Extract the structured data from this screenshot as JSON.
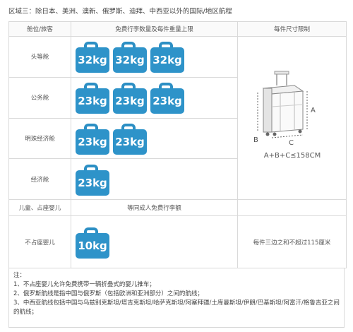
{
  "title": "区域三：除日本、美洲、澳新、俄罗斯、迪拜、中西亚以外的国际/地区航程",
  "headers": {
    "cabin": "舱位/旅客",
    "allowance": "免费行李数量及每件重量上限",
    "size": "每件尺寸限制"
  },
  "rows": [
    {
      "label": "头等舱",
      "bags": [
        "32kg",
        "32kg",
        "32kg"
      ]
    },
    {
      "label": "公务舱",
      "bags": [
        "23kg",
        "23kg",
        "23kg"
      ]
    },
    {
      "label": "明珠经济舱",
      "bags": [
        "23kg",
        "23kg"
      ]
    },
    {
      "label": "经济舱",
      "bags": [
        "23kg"
      ]
    },
    {
      "label": "儿童、占座婴儿",
      "text": "等同成人免费行李额"
    },
    {
      "label": "不占座婴儿",
      "bags": [
        "10kg"
      ]
    }
  ],
  "size_diagram": {
    "label_a": "A",
    "label_b": "B",
    "label_c": "C",
    "formula": "A+B+C≤158CM"
  },
  "infant_size_note": "每件三边之和不超过115厘米",
  "notes": {
    "heading": "注：",
    "items": [
      "1、不占座婴儿允许免费携带一辆折叠式的婴儿推车；",
      "2、俄罗斯航线是指中国与俄罗斯（包括欧洲和亚洲部分）之间的航线；",
      "3、中西亚航线包括中国与乌兹别克斯坦/塔吉克斯坦/哈萨克斯坦/阿塞拜疆/土库曼斯坦/伊朗/巴基斯坦/阿富汗/格鲁吉亚之间的航线；"
    ]
  },
  "colors": {
    "bag": "#2e93c9",
    "handle": "#2c8fc4",
    "border": "#d9d9d9"
  }
}
